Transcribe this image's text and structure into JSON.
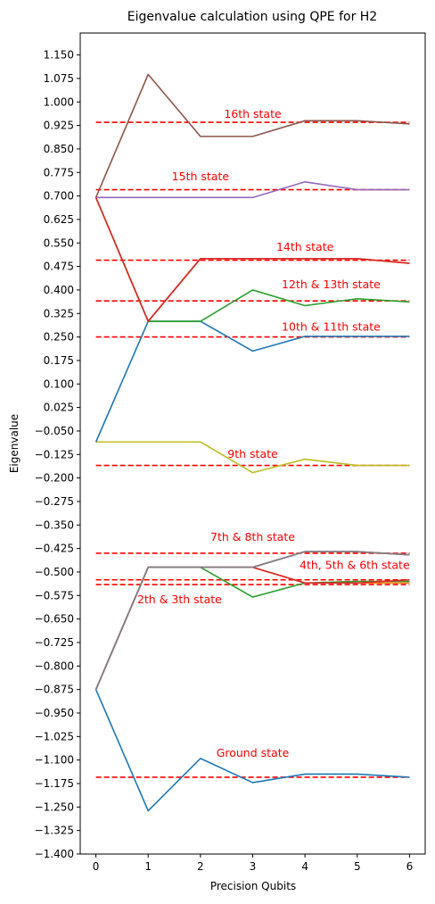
{
  "chart_data": {
    "type": "line",
    "title": "Eigenvalue calculation using QPE for H2",
    "xlabel": "Precision Qubits",
    "ylabel": "Eigenvalue",
    "xlim": [
      -0.3,
      6.3
    ],
    "ylim": [
      -1.4,
      1.22
    ],
    "x": [
      0,
      1,
      2,
      3,
      4,
      5,
      6
    ],
    "xticks": [
      "0",
      "1",
      "2",
      "3",
      "4",
      "5",
      "6"
    ],
    "yticks": [
      "1.150",
      "1.075",
      "1.000",
      "0.925",
      "0.850",
      "0.775",
      "0.700",
      "0.625",
      "0.550",
      "0.475",
      "0.400",
      "0.325",
      "0.250",
      "0.175",
      "0.100",
      "0.025",
      "−0.050",
      "−0.125",
      "−0.200",
      "−0.275",
      "−0.350",
      "−0.425",
      "−0.500",
      "−0.575",
      "−0.650",
      "−0.725",
      "−0.800",
      "−0.875",
      "−0.950",
      "−1.025",
      "−1.100",
      "−1.175",
      "−1.250",
      "−1.325",
      "−1.400"
    ],
    "ytick_values": [
      1.15,
      1.075,
      1.0,
      0.925,
      0.85,
      0.775,
      0.7,
      0.625,
      0.55,
      0.475,
      0.4,
      0.325,
      0.25,
      0.175,
      0.1,
      0.025,
      -0.05,
      -0.125,
      -0.2,
      -0.275,
      -0.35,
      -0.425,
      -0.5,
      -0.575,
      -0.65,
      -0.725,
      -0.8,
      -0.875,
      -0.95,
      -1.025,
      -1.1,
      -1.175,
      -1.25,
      -1.325,
      -1.4
    ],
    "grid": false,
    "series": [
      {
        "color": "#1f77b4",
        "values": [
          -0.875,
          -1.262,
          -1.095,
          -1.172,
          -1.145,
          -1.145,
          -1.155
        ]
      },
      {
        "color": "#ff7f0e",
        "values": [
          -0.875,
          -0.485,
          -0.485,
          -0.485,
          -0.535,
          -0.535,
          -0.535
        ]
      },
      {
        "color": "#2ca02c",
        "values": [
          -0.875,
          -0.485,
          -0.485,
          -0.58,
          -0.535,
          -0.53,
          -0.53
        ]
      },
      {
        "color": "#d62728",
        "values": [
          -0.875,
          -0.485,
          -0.485,
          -0.485,
          -0.535,
          -0.535,
          -0.525
        ]
      },
      {
        "color": "#9467bd",
        "values": [
          -0.875,
          -0.485,
          -0.485,
          -0.485,
          -0.435,
          -0.435,
          -0.445
        ]
      },
      {
        "color": "#8c564b",
        "values": [
          -0.875,
          -0.485,
          -0.485,
          -0.485,
          -0.435,
          -0.435,
          -0.445
        ]
      },
      {
        "color": "#e377c2",
        "values": [
          -0.875,
          -0.485,
          -0.485,
          -0.485,
          -0.435,
          -0.435,
          -0.445
        ]
      },
      {
        "color": "#7f7f7f",
        "values": [
          -0.875,
          -0.485,
          -0.485,
          -0.485,
          -0.435,
          -0.435,
          -0.445
        ]
      },
      {
        "color": "#bcbd22",
        "values": [
          -0.085,
          -0.085,
          -0.085,
          -0.183,
          -0.14,
          -0.16,
          -0.16
        ]
      },
      {
        "color": "#1f77b4",
        "values": [
          -0.085,
          0.3,
          0.3,
          0.205,
          0.252,
          0.252,
          0.252
        ]
      },
      {
        "color": "#2ca02c",
        "values": [
          0.695,
          0.3,
          0.3,
          0.4,
          0.35,
          0.372,
          0.362
        ]
      },
      {
        "color": "#ff7f0e",
        "values": [
          0.695,
          0.3,
          0.5,
          0.5,
          0.5,
          0.5,
          0.485
        ]
      },
      {
        "color": "#d62728",
        "values": [
          0.695,
          0.3,
          0.5,
          0.5,
          0.5,
          0.5,
          0.485
        ]
      },
      {
        "color": "#9467bd",
        "values": [
          0.695,
          0.695,
          0.695,
          0.695,
          0.745,
          0.72,
          0.72
        ]
      },
      {
        "color": "#8c564b",
        "values": [
          0.695,
          1.088,
          0.89,
          0.89,
          0.94,
          0.94,
          0.93
        ]
      }
    ],
    "reference_lines": [
      {
        "value": 0.935,
        "color": "#ff0000",
        "style": "dashed"
      },
      {
        "value": 0.72,
        "color": "#ff0000",
        "style": "dashed"
      },
      {
        "value": 0.495,
        "color": "#ff0000",
        "style": "dashed"
      },
      {
        "value": 0.365,
        "color": "#ff0000",
        "style": "dashed"
      },
      {
        "value": 0.25,
        "color": "#ff0000",
        "style": "dashed"
      },
      {
        "value": -0.16,
        "color": "#ff0000",
        "style": "dashed"
      },
      {
        "value": -0.44,
        "color": "#ff0000",
        "style": "dashed"
      },
      {
        "value": -0.525,
        "color": "#ff0000",
        "style": "dashed"
      },
      {
        "value": -0.54,
        "color": "#ff0000",
        "style": "dashed"
      },
      {
        "value": -1.155,
        "color": "#ff0000",
        "style": "dashed"
      }
    ],
    "annotations": [
      {
        "text": "16th state",
        "x": 3.0,
        "y": 0.95
      },
      {
        "text": "15th state",
        "x": 2.0,
        "y": 0.75
      },
      {
        "text": "14th state",
        "x": 4.0,
        "y": 0.525
      },
      {
        "text": "12th & 13th state",
        "x": 4.5,
        "y": 0.405
      },
      {
        "text": "10th & 11th state",
        "x": 4.5,
        "y": 0.27
      },
      {
        "text": "9th state",
        "x": 3.0,
        "y": -0.135
      },
      {
        "text": "7th & 8th state",
        "x": 3.0,
        "y": -0.4
      },
      {
        "text": "4th, 5th & 6th state",
        "x": 4.95,
        "y": -0.49
      },
      {
        "text": "2th & 3th state",
        "x": 1.6,
        "y": -0.6
      },
      {
        "text": "Ground state",
        "x": 3.0,
        "y": -1.09
      }
    ]
  }
}
